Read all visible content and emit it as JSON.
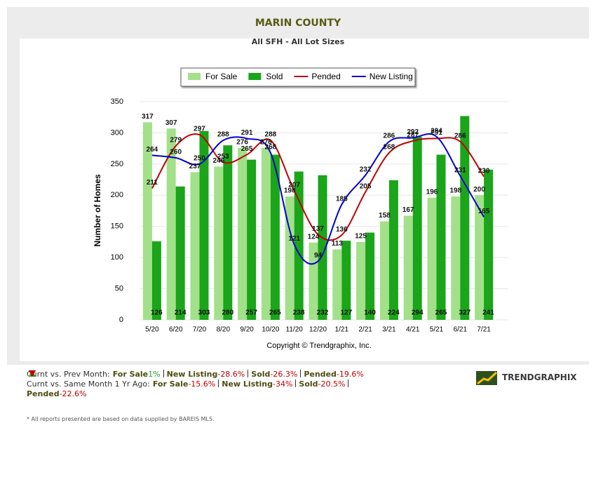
{
  "chart_data": {
    "type": "bar",
    "title": "MARIN COUNTY",
    "subtitle": "All SFH - All Lot Sizes",
    "y_label": "Number of Homes",
    "credit": "Copyright © Trendgraphix, Inc.",
    "categories": [
      "5/20",
      "6/20",
      "7/20",
      "8/20",
      "9/20",
      "10/20",
      "11/20",
      "12/20",
      "1/21",
      "2/21",
      "3/21",
      "4/21",
      "5/21",
      "6/21",
      "7/21"
    ],
    "series": [
      {
        "name": "For Sale",
        "type": "bar",
        "color": "#a3e08a",
        "values": [
          317,
          307,
          237,
          246,
          276,
          276,
          198,
          124,
          113,
          125,
          158,
          167,
          196,
          198,
          200
        ]
      },
      {
        "name": "Sold",
        "type": "bar",
        "color": "#1aa51a",
        "values": [
          126,
          214,
          303,
          280,
          257,
          265,
          238,
          232,
          127,
          140,
          224,
          294,
          265,
          327,
          241
        ]
      },
      {
        "name": "Pended",
        "type": "line",
        "color": "#c00000",
        "values": [
          211,
          279,
          297,
          253,
          265,
          288,
          207,
          137,
          136,
          205,
          268,
          287,
          291,
          286,
          230
        ]
      },
      {
        "name": "New Listing",
        "type": "line",
        "color": "#0000d0",
        "values": [
          264,
          260,
          250,
          288,
          291,
          268,
          121,
          94,
          185,
          232,
          286,
          292,
          294,
          231,
          165
        ]
      }
    ],
    "ylim": [
      0,
      350
    ],
    "yticks": [
      0,
      50,
      100,
      150,
      200,
      250,
      300,
      350
    ],
    "grid": true,
    "legend": "top"
  },
  "comparisons": [
    {
      "label": "Curnt vs. Prev Month:",
      "items": [
        {
          "name": "For Sale",
          "dir": "up",
          "change": "1%"
        },
        {
          "name": "New Listing",
          "dir": "down",
          "change": "-28.6%"
        },
        {
          "name": "Sold",
          "dir": "down",
          "change": "-26.3%"
        },
        {
          "name": "Pended",
          "dir": "down",
          "change": "-19.6%"
        }
      ]
    },
    {
      "label": "Curnt vs. Same Month 1 Yr Ago:",
      "items": [
        {
          "name": "For Sale",
          "dir": "down",
          "change": "-15.6%"
        },
        {
          "name": "New Listing",
          "dir": "down",
          "change": "-34%"
        },
        {
          "name": "Sold",
          "dir": "down",
          "change": "-20.5%"
        },
        {
          "name": "Pended",
          "dir": "down",
          "change": "-22.6%"
        }
      ]
    }
  ],
  "note": "* All reports presented are based on data supplied by BAREIS MLS.",
  "logo": "TRENDGRAPHIX"
}
